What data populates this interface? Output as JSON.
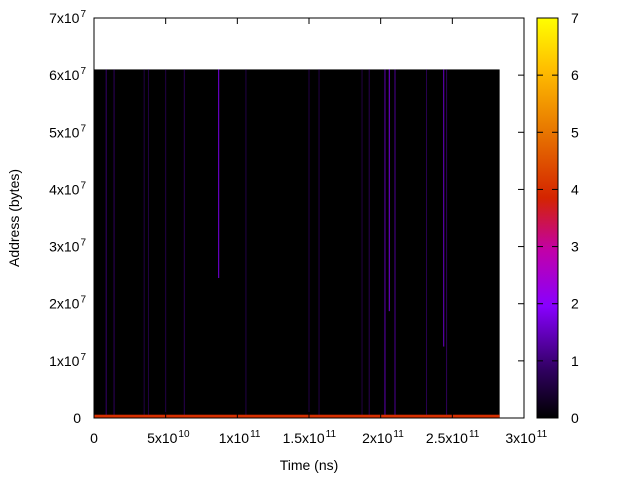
{
  "chart_data": {
    "type": "heatmap",
    "title": "",
    "xlabel": "Time (ns)",
    "ylabel": "Address (bytes)",
    "xlim": [
      0,
      300000000000
    ],
    "ylim": [
      0,
      70000000
    ],
    "grid": false,
    "legend": "none",
    "x_ticks": [
      {
        "value": 0,
        "base": "0",
        "exp": ""
      },
      {
        "value": 50000000000,
        "base": "5x10",
        "exp": "10"
      },
      {
        "value": 100000000000,
        "base": "1x10",
        "exp": "11"
      },
      {
        "value": 150000000000,
        "base": "1.5x10",
        "exp": "11"
      },
      {
        "value": 200000000000,
        "base": "2x10",
        "exp": "11"
      },
      {
        "value": 250000000000,
        "base": "2.5x10",
        "exp": "11"
      },
      {
        "value": 300000000000,
        "base": "3x10",
        "exp": "11"
      }
    ],
    "y_ticks": [
      {
        "value": 0,
        "base": "0",
        "exp": ""
      },
      {
        "value": 10000000,
        "base": "1x10",
        "exp": "7"
      },
      {
        "value": 20000000,
        "base": "2x10",
        "exp": "7"
      },
      {
        "value": 30000000,
        "base": "3x10",
        "exp": "7"
      },
      {
        "value": 40000000,
        "base": "4x10",
        "exp": "7"
      },
      {
        "value": 50000000,
        "base": "5x10",
        "exp": "7"
      },
      {
        "value": 60000000,
        "base": "6x10",
        "exp": "7"
      },
      {
        "value": 70000000,
        "base": "7x10",
        "exp": "7"
      }
    ],
    "colorbar": {
      "min": 0,
      "max": 7,
      "ticks": [
        "0",
        "1",
        "2",
        "3",
        "4",
        "5",
        "6",
        "7"
      ],
      "palette": "black-purple-red-orange-yellow"
    },
    "heatmap_region": {
      "x_range": [
        0,
        283000000000
      ],
      "y_range": [
        0,
        61000000
      ],
      "background_value": 0
    },
    "hot_band": {
      "y_range": [
        0,
        400000
      ],
      "value": 4
    },
    "streaks": [
      {
        "x": 8500000000,
        "y_range": [
          500000,
          61000000
        ],
        "value": 0.9
      },
      {
        "x": 14000000000,
        "y_range": [
          500000,
          61000000
        ],
        "value": 0.8
      },
      {
        "x": 35000000000,
        "y_range": [
          500000,
          61000000
        ],
        "value": 0.6
      },
      {
        "x": 38000000000,
        "y_range": [
          500000,
          61000000
        ],
        "value": 0.6
      },
      {
        "x": 50000000000,
        "y_range": [
          500000,
          61000000
        ],
        "value": 0.6
      },
      {
        "x": 63000000000,
        "y_range": [
          500000,
          61000000
        ],
        "value": 0.7
      },
      {
        "x": 87000000000,
        "y_range": [
          24500000,
          61000000
        ],
        "value": 1.8
      },
      {
        "x": 106000000000,
        "y_range": [
          500000,
          61000000
        ],
        "value": 0.6
      },
      {
        "x": 150000000000,
        "y_range": [
          500000,
          61000000
        ],
        "value": 0.6
      },
      {
        "x": 157000000000,
        "y_range": [
          500000,
          61000000
        ],
        "value": 0.6
      },
      {
        "x": 187000000000,
        "y_range": [
          500000,
          61000000
        ],
        "value": 0.6
      },
      {
        "x": 192000000000,
        "y_range": [
          500000,
          61000000
        ],
        "value": 0.7
      },
      {
        "x": 203000000000,
        "y_range": [
          500000,
          61000000
        ],
        "value": 1.4
      },
      {
        "x": 206000000000,
        "y_range": [
          18700000,
          61000000
        ],
        "value": 1.8
      },
      {
        "x": 210000000000,
        "y_range": [
          500000,
          61000000
        ],
        "value": 1.2
      },
      {
        "x": 232000000000,
        "y_range": [
          500000,
          61000000
        ],
        "value": 0.7
      },
      {
        "x": 244000000000,
        "y_range": [
          12500000,
          61000000
        ],
        "value": 1.6
      },
      {
        "x": 246000000000,
        "y_range": [
          500000,
          61000000
        ],
        "value": 0.8
      }
    ]
  }
}
